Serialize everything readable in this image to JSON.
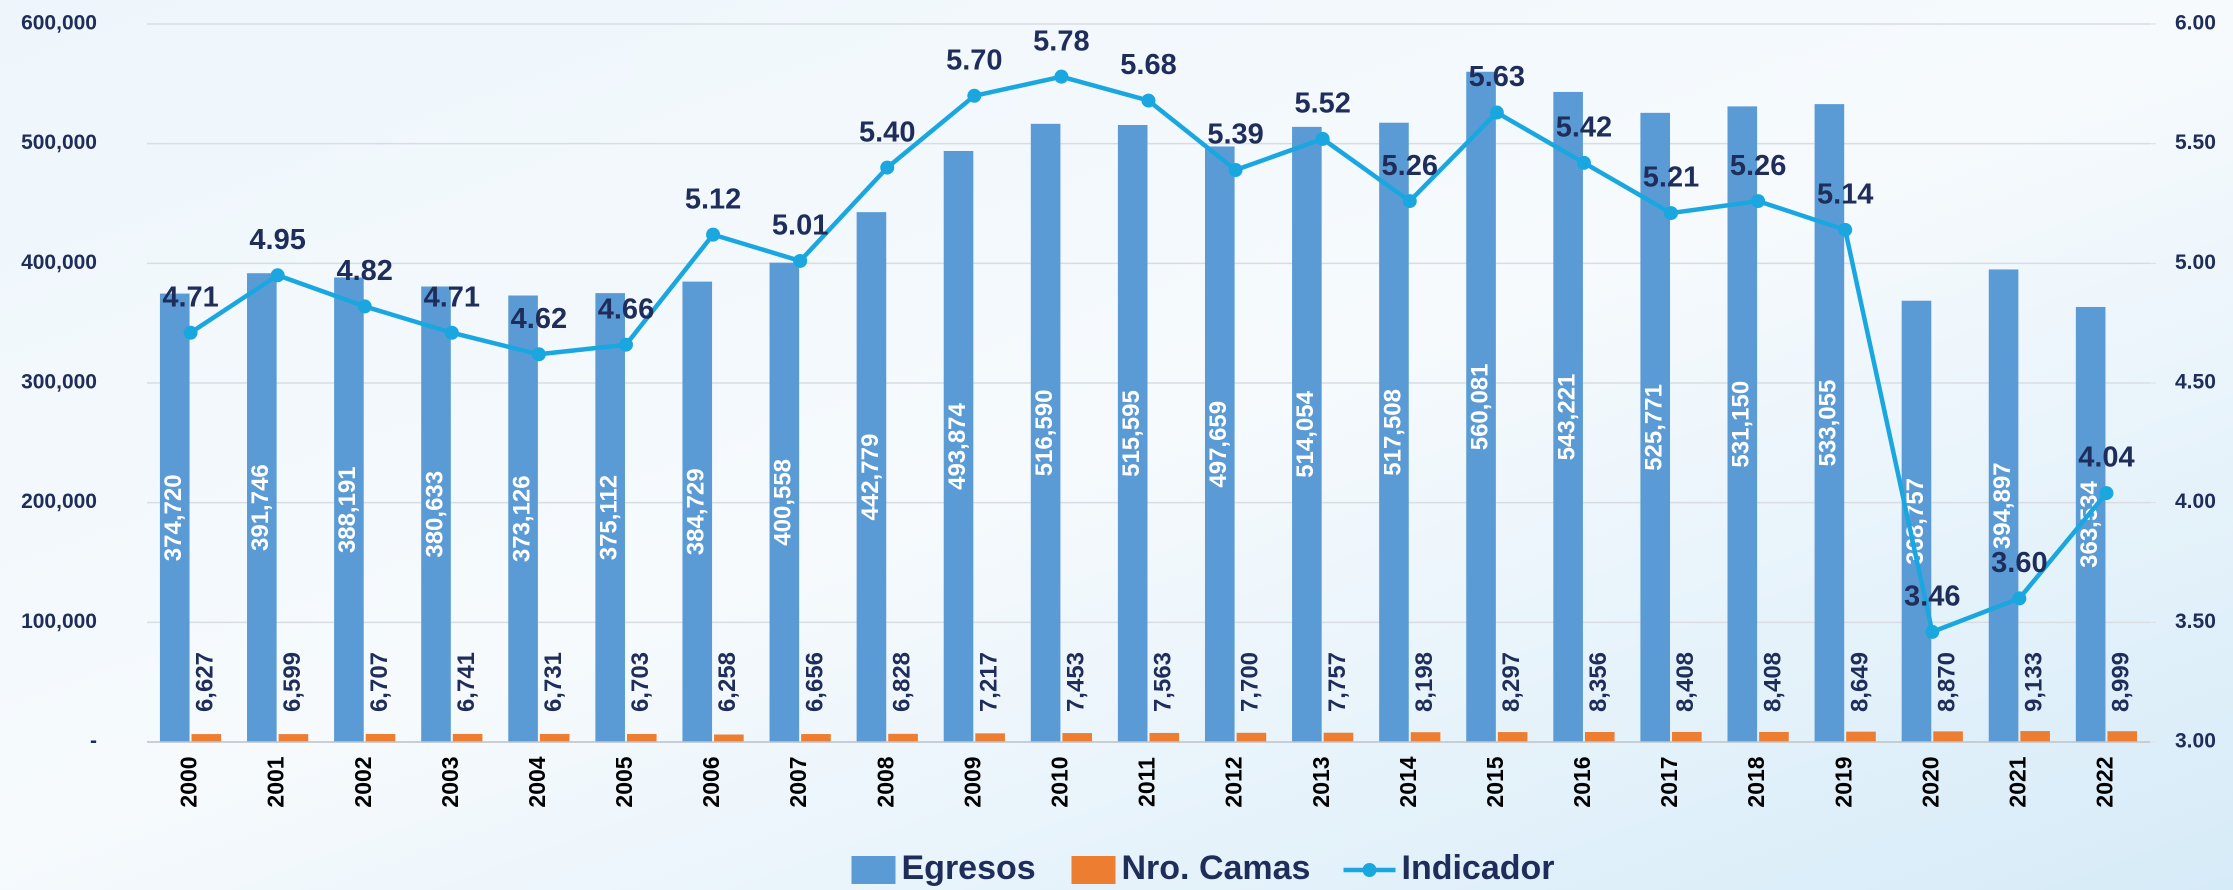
{
  "chart_data": {
    "type": "bar-line",
    "categories": [
      "2000",
      "2001",
      "2002",
      "2003",
      "2004",
      "2005",
      "2006",
      "2007",
      "2008",
      "2009",
      "2010",
      "2011",
      "2012",
      "2013",
      "2014",
      "2015",
      "2016",
      "2017",
      "2018",
      "2019",
      "2020",
      "2021",
      "2022"
    ],
    "series": [
      {
        "name": "Egresos",
        "color": "#5b9bd5",
        "type": "bar",
        "values": [
          374720,
          391746,
          388191,
          380633,
          373126,
          375112,
          384729,
          400558,
          442779,
          493874,
          516590,
          515595,
          497659,
          514054,
          517508,
          560081,
          543221,
          525771,
          531150,
          533055,
          368757,
          394897,
          363534
        ],
        "value_labels": [
          "374,720",
          "391,746",
          "388,191",
          "380,633",
          "373,126",
          "375,112",
          "384,729",
          "400,558",
          "442,779",
          "493,874",
          "516,590",
          "515,595",
          "497,659",
          "514,054",
          "517,508",
          "560,081",
          "543,221",
          "525,771",
          "531,150",
          "533,055",
          "368,757",
          "394,897",
          "363,534"
        ]
      },
      {
        "name": "Nro. Camas",
        "color": "#ed7d31",
        "type": "bar",
        "values": [
          6627,
          6599,
          6707,
          6741,
          6731,
          6703,
          6258,
          6656,
          6828,
          7217,
          7453,
          7563,
          7700,
          7757,
          8198,
          8297,
          8356,
          8408,
          8408,
          8649,
          8870,
          9133,
          8999
        ],
        "value_labels": [
          "6,627",
          "6,599",
          "6,707",
          "6,741",
          "6,731",
          "6,703",
          "6,258",
          "6,656",
          "6,828",
          "7,217",
          "7,453",
          "7,563",
          "7,700",
          "7,757",
          "8,198",
          "8,297",
          "8,356",
          "8,408",
          "8,408",
          "8,649",
          "8,870",
          "9,133",
          "8,999"
        ]
      },
      {
        "name": "Indicador",
        "color": "#1aa7e0",
        "type": "line",
        "axis": "y2",
        "values": [
          4.71,
          4.95,
          4.82,
          4.71,
          4.62,
          4.66,
          5.12,
          5.01,
          5.4,
          5.7,
          5.78,
          5.68,
          5.39,
          5.52,
          5.26,
          5.63,
          5.42,
          5.21,
          5.26,
          5.14,
          3.46,
          3.6,
          4.04
        ],
        "value_labels": [
          "4.71",
          "4.95",
          "4.82",
          "4.71",
          "4.62",
          "4.66",
          "5.12",
          "5.01",
          "5.40",
          "5.70",
          "5.78",
          "5.68",
          "5.39",
          "5.52",
          "5.26",
          "5.63",
          "5.42",
          "5.21",
          "5.26",
          "5.14",
          "3.46",
          "3.60",
          "4.04"
        ]
      }
    ],
    "ylim": [
      0,
      600000
    ],
    "yticks": [
      {
        "value": 0,
        "label": "-"
      },
      {
        "value": 100000,
        "label": "100,000"
      },
      {
        "value": 200000,
        "label": "200,000"
      },
      {
        "value": 300000,
        "label": "300,000"
      },
      {
        "value": 400000,
        "label": "400,000"
      },
      {
        "value": 500000,
        "label": "500,000"
      },
      {
        "value": 600000,
        "label": "600,000"
      }
    ],
    "y2lim": [
      3,
      6
    ],
    "y2ticks": [
      {
        "value": 3,
        "label": "3.00"
      },
      {
        "value": 3.5,
        "label": "3.50"
      },
      {
        "value": 4,
        "label": "4.00"
      },
      {
        "value": 4.5,
        "label": "4.50"
      },
      {
        "value": 5,
        "label": "5.00"
      },
      {
        "value": 5.5,
        "label": "5.50"
      },
      {
        "value": 6,
        "label": "6.00"
      }
    ],
    "grid": true,
    "legend": "bottom"
  }
}
